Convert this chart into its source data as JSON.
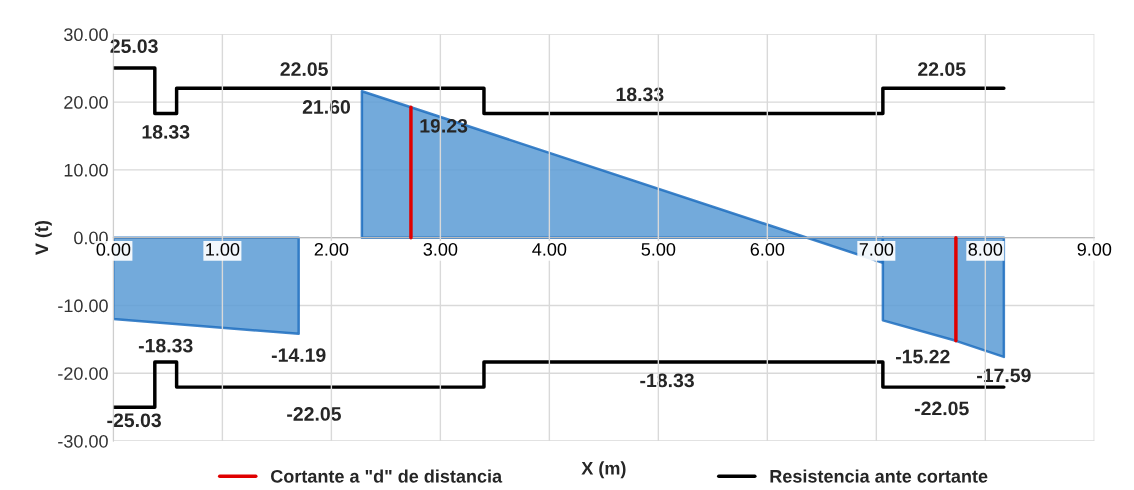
{
  "chart_data": {
    "type": "area",
    "xlabel": "X (m)",
    "ylabel": "V (t)",
    "xlim": [
      0,
      9
    ],
    "ylim": [
      -30,
      30
    ],
    "xticks": [
      {
        "value": 0,
        "label": "0.00"
      },
      {
        "value": 1,
        "label": "1.00"
      },
      {
        "value": 2,
        "label": "2.00"
      },
      {
        "value": 3,
        "label": "3.00"
      },
      {
        "value": 4,
        "label": "4.00"
      },
      {
        "value": 5,
        "label": "5.00"
      },
      {
        "value": 6,
        "label": "6.00"
      },
      {
        "value": 7,
        "label": "7.00"
      },
      {
        "value": 8,
        "label": "8.00"
      },
      {
        "value": 9,
        "label": "9.00"
      }
    ],
    "yticks": [
      {
        "value": -30,
        "label": "-30.00"
      },
      {
        "value": -20,
        "label": "-20.00"
      },
      {
        "value": -10,
        "label": "-10.00"
      },
      {
        "value": 0,
        "label": "0.00"
      },
      {
        "value": 10,
        "label": "10.00"
      },
      {
        "value": 20,
        "label": "20.00"
      },
      {
        "value": 30,
        "label": "30.00"
      }
    ],
    "grid": true,
    "legend": "bottom",
    "series": [
      {
        "color": "#5b9bd5",
        "x": [
          0,
          1.7
        ],
        "values": [
          -12.0,
          -14.19
        ]
      },
      {
        "color": "#5b9bd5",
        "x": [
          2.28,
          2.73,
          7.06
        ],
        "values": [
          21.6,
          19.23,
          -3.7
        ]
      },
      {
        "color": "#5b9bd5",
        "x": [
          7.06,
          7.73,
          8.17
        ],
        "values": [
          -12.2,
          -15.22,
          -17.59
        ]
      },
      {
        "type": "line",
        "name": "Cortante a \"d\" de distancia",
        "color": "#e00000",
        "x": [
          2.73,
          2.73,
          null,
          7.73,
          7.73
        ],
        "values": [
          0,
          19.23,
          null,
          0,
          -15.22
        ]
      },
      {
        "type": "step",
        "name": "Resistencia ante cortante",
        "color": "#000000",
        "x": [
          0,
          0.38,
          0.58,
          3.4,
          7.06,
          8.17
        ],
        "values": [
          25.03,
          18.33,
          22.05,
          18.33,
          22.05,
          22.05
        ]
      },
      {
        "type": "step",
        "color": "#000000",
        "x": [
          0,
          0.38,
          0.58,
          3.4,
          7.06,
          8.17
        ],
        "values": [
          -25.03,
          -18.33,
          -22.05,
          -18.33,
          -22.05,
          -22.05
        ]
      }
    ],
    "annotations": [
      {
        "text": "25.03",
        "x": 0.19,
        "y": 25.03
      },
      {
        "text": "18.33",
        "x": 0.48,
        "y": 18.33
      },
      {
        "text": "22.05",
        "x": 1.75,
        "y": 22.05
      },
      {
        "text": "21.60",
        "x": 2.28,
        "y": 21.6
      },
      {
        "text": "19.23",
        "x": 2.73,
        "y": 19.23
      },
      {
        "text": "18.33",
        "x": 4.83,
        "y": 18.33
      },
      {
        "text": "22.05",
        "x": 7.6,
        "y": 22.05
      },
      {
        "text": "-18.33",
        "x": 0.48,
        "y": -18.33
      },
      {
        "text": "-14.19",
        "x": 1.7,
        "y": -14.19
      },
      {
        "text": "-22.05",
        "x": 1.84,
        "y": -22.05
      },
      {
        "text": "-25.03",
        "x": 0.19,
        "y": -25.03
      },
      {
        "text": "-18.33",
        "x": 5.08,
        "y": -18.33
      },
      {
        "text": "-15.22",
        "x": 7.73,
        "y": -15.22
      },
      {
        "text": "-17.59",
        "x": 8.17,
        "y": -17.59
      },
      {
        "text": "-22.05",
        "x": 7.6,
        "y": -22.05
      }
    ]
  }
}
